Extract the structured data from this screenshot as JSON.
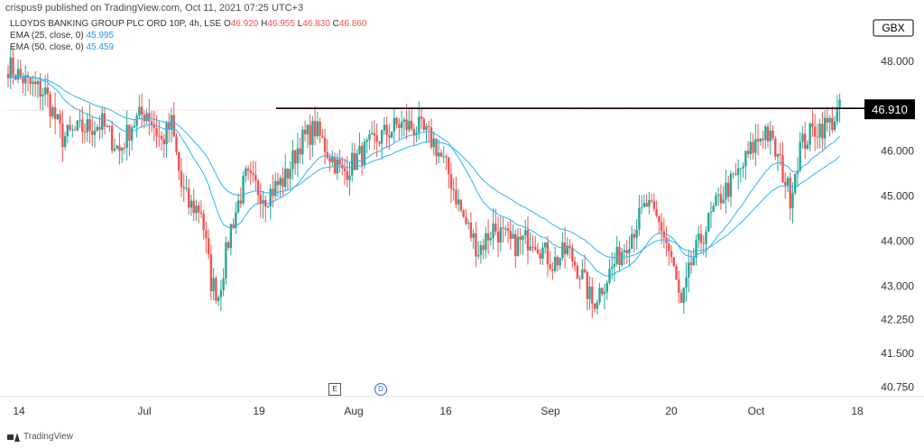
{
  "header": {
    "published": "crispus9 published on TradingView.com, Oct 11, 2021 07:25 UTC+3"
  },
  "legend": {
    "symbol": "LLOYDS BANKING GROUP PLC ORD 10P, 4h, LSE",
    "ohlc": {
      "o_label": "O",
      "o": "46.920",
      "h_label": "H",
      "h": "46.955",
      "l_label": "L",
      "l": "46.830",
      "c_label": "C",
      "c": "46.860"
    },
    "ema25": {
      "label": "EMA (25, close, 0)",
      "value": "45.995"
    },
    "ema50": {
      "label": "EMA (50, close, 0)",
      "value": "45.459"
    }
  },
  "footer": {
    "brand": "TradingView"
  },
  "events": {
    "earnings": "E",
    "dividend": "D"
  },
  "colors": {
    "up": "#26a69a",
    "down": "#ef5350",
    "ema": "#29b6f6",
    "resistance": "#000000",
    "price_tag": "#000000",
    "grid": "#f0f3fa"
  },
  "chart_data": {
    "type": "candlestick",
    "currency_label": "GBX",
    "y_tick_labels": [
      "48.000",
      "46.910",
      "46.000",
      "45.000",
      "44.000",
      "43.000",
      "42.250",
      "41.500",
      "40.750"
    ],
    "y_ticks": [
      48.0,
      46.0,
      45.0,
      44.0,
      43.0,
      42.25,
      41.5,
      40.75
    ],
    "ylim": [
      40.6,
      49.2
    ],
    "x_tick_labels": [
      "14",
      "Jul",
      "19",
      "Aug",
      "16",
      "Sep",
      "20",
      "Oct",
      "18"
    ],
    "resistance_level": 46.91,
    "last_price_label": "46.910",
    "ema_labels": [
      "EMA 25",
      "EMA 50"
    ],
    "close_path": [
      [
        0,
        47.9
      ],
      [
        8,
        47.5
      ],
      [
        15,
        47.3
      ],
      [
        22,
        46.3
      ],
      [
        30,
        46.5
      ],
      [
        38,
        46.6
      ],
      [
        45,
        46.0
      ],
      [
        50,
        46.6
      ],
      [
        56,
        46.9
      ],
      [
        62,
        46.2
      ],
      [
        66,
        46.6
      ],
      [
        70,
        45.2
      ],
      [
        73,
        44.8
      ],
      [
        78,
        44.7
      ],
      [
        82,
        43.1
      ],
      [
        85,
        42.8
      ],
      [
        90,
        44.3
      ],
      [
        96,
        45.4
      ],
      [
        104,
        45.0
      ],
      [
        112,
        45.4
      ],
      [
        118,
        46.2
      ],
      [
        124,
        46.5
      ],
      [
        129,
        46.0
      ],
      [
        135,
        45.5
      ],
      [
        142,
        45.9
      ],
      [
        150,
        46.3
      ],
      [
        158,
        46.6
      ],
      [
        166,
        46.5
      ],
      [
        172,
        46.2
      ],
      [
        178,
        45.5
      ],
      [
        184,
        44.5
      ],
      [
        190,
        43.8
      ],
      [
        196,
        44.3
      ],
      [
        204,
        43.9
      ],
      [
        212,
        44.1
      ],
      [
        220,
        43.5
      ],
      [
        226,
        43.8
      ],
      [
        232,
        43.2
      ],
      [
        236,
        42.6
      ],
      [
        240,
        43.0
      ],
      [
        246,
        43.6
      ],
      [
        252,
        44.2
      ],
      [
        258,
        44.8
      ],
      [
        264,
        44.3
      ],
      [
        268,
        43.6
      ],
      [
        272,
        42.5
      ],
      [
        276,
        43.5
      ],
      [
        282,
        44.3
      ],
      [
        288,
        45.0
      ],
      [
        294,
        45.4
      ],
      [
        300,
        46.0
      ],
      [
        306,
        46.5
      ],
      [
        312,
        45.7
      ],
      [
        316,
        45.0
      ],
      [
        320,
        46.1
      ],
      [
        326,
        46.5
      ],
      [
        332,
        46.6
      ],
      [
        336,
        46.9
      ]
    ]
  }
}
